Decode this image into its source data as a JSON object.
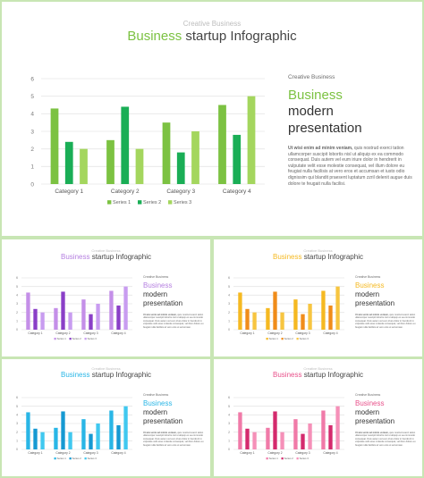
{
  "slides": [
    {
      "id": "green",
      "accent": "#7cc242",
      "colors": [
        "#7cc242",
        "#1aae56",
        "#a4d65e"
      ],
      "subtitle": "Creative Business",
      "title_accent": "Business",
      "title_rest": " startup Infographic",
      "side_label": "Creative Business",
      "side_heading": "Business",
      "side_heading_2": "modern",
      "side_heading_3": "presentation",
      "body_bold": "Ut wisi enim ad minim veniam,",
      "body_rest": " quis nostrud exerci tation ullamcorper suscipit lobortis nisl ut aliquip ex ea commodo consequat. Duis autem vel eum iriure dolor in hendrerit in vulputate velit esse molestie consequat, vel illum dolore eu feugiat nulla facilisis at vero eros et accumsan et iusto odio dignissim qui blandit praesent luptatum zzril delenit augue duis dolore te feugait nulla facilisi.",
      "legend": [
        "Series 1",
        "Series 2",
        "Series 3"
      ]
    },
    {
      "id": "purple",
      "accent": "#b57fe0",
      "colors": [
        "#c48fe8",
        "#8a3fc7",
        "#c89cf0"
      ],
      "subtitle": "Creative Business",
      "title_accent": "Business",
      "title_rest": " startup Infographic",
      "side_label": "Creative Business",
      "side_heading": "Business",
      "side_heading_2": "modern",
      "side_heading_3": "presentation",
      "body_bold": "Ut wisi enim ad minim veniam,",
      "body_rest": " quis nostrud exerci tation ullamcorper suscipit lobortis nisl ut aliquip ex ea commodo consequat. Duis autem vel eum iriure dolor in hendrerit in vulputate velit esse molestie consequat, vel illum dolore eu feugiat nulla facilisis at vero eros et accumsan.",
      "legend": [
        "Series 1",
        "Series 2",
        "Series 3"
      ]
    },
    {
      "id": "orange",
      "accent": "#f5b921",
      "colors": [
        "#f5b921",
        "#f08c1a",
        "#f7c540"
      ],
      "subtitle": "Creative Business",
      "title_accent": "Business",
      "title_rest": " startup Infographic",
      "side_label": "Creative Business",
      "side_heading": "Business",
      "side_heading_2": "modern",
      "side_heading_3": "presentation",
      "body_bold": "Ut wisi enim ad minim veniam,",
      "body_rest": " quis nostrud exerci tation ullamcorper suscipit lobortis nisl ut aliquip ex ea commodo consequat. Duis autem vel eum iriure dolor in hendrerit in vulputate velit esse molestie consequat, vel illum dolore eu feugiat nulla facilisis at vero eros et accumsan.",
      "legend": [
        "Series 1",
        "Series 2",
        "Series 3"
      ]
    },
    {
      "id": "blue",
      "accent": "#29b6e6",
      "colors": [
        "#29b6e6",
        "#1699d2",
        "#40c8ef"
      ],
      "subtitle": "Creative Business",
      "title_accent": "Business",
      "title_rest": " startup Infographic",
      "side_label": "Creative Business",
      "side_heading": "Business",
      "side_heading_2": "modern",
      "side_heading_3": "presentation",
      "body_bold": "Ut wisi enim ad minim veniam,",
      "body_rest": " quis nostrud exerci tation ullamcorper suscipit lobortis nisl ut aliquip ex ea commodo consequat. Duis autem vel eum iriure dolor in hendrerit in vulputate velit esse molestie consequat, vel illum dolore eu feugiat nulla facilisis at vero eros et accumsan.",
      "legend": [
        "Series 1",
        "Series 2",
        "Series 3"
      ]
    },
    {
      "id": "pink",
      "accent": "#e8508a",
      "colors": [
        "#f07aa8",
        "#d42a6d",
        "#f590b8"
      ],
      "subtitle": "Creative Business",
      "title_accent": "Business",
      "title_rest": " startup Infographic",
      "side_label": "Creative Business",
      "side_heading": "Business",
      "side_heading_2": "modern",
      "side_heading_3": "presentation",
      "body_bold": "Ut wisi enim ad minim veniam,",
      "body_rest": " quis nostrud exerci tation ullamcorper suscipit lobortis nisl ut aliquip ex ea commodo consequat. Duis autem vel eum iriure dolor in hendrerit in vulputate velit esse molestie consequat, vel illum dolore eu feugiat nulla facilisis at vero eros et accumsan.",
      "legend": [
        "Series 1",
        "Series 2",
        "Series 3"
      ]
    }
  ],
  "chart_data": {
    "type": "bar",
    "categories": [
      "Category 1",
      "Category 2",
      "Category 3",
      "Category 4"
    ],
    "series": [
      {
        "name": "Series 1",
        "values": [
          4.3,
          2.5,
          3.5,
          4.5
        ]
      },
      {
        "name": "Series 2",
        "values": [
          2.4,
          4.4,
          1.8,
          2.8
        ]
      },
      {
        "name": "Series 3",
        "values": [
          2.0,
          2.0,
          3.0,
          5.0
        ]
      }
    ],
    "ylim": [
      0,
      6
    ],
    "yticks": [
      "0",
      "1",
      "2",
      "3",
      "4",
      "5",
      "6"
    ],
    "grid": true,
    "legend": "bottom"
  }
}
